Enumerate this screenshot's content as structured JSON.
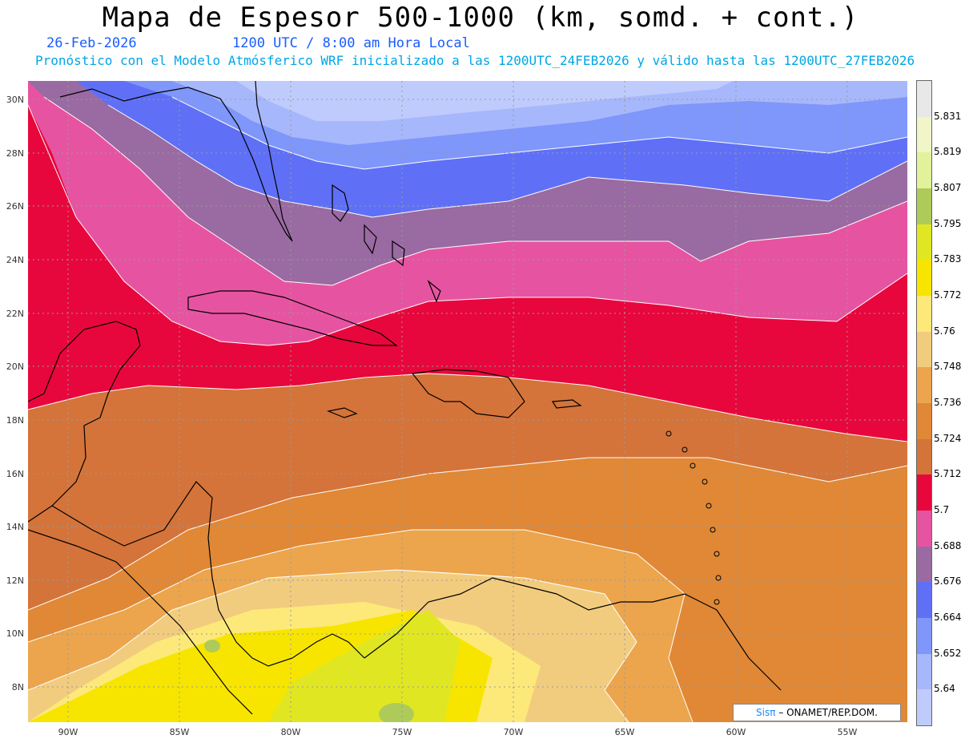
{
  "header": {
    "title": "Mapa de Espesor 500-1000 (km, somd. + cont.)",
    "date": "26-Feb-2026",
    "time": "1200 UTC / 8:00 am Hora Local",
    "forecast": "Pronóstico con el Modelo Atmósferico WRF inicializado a las 1200UTC_24FEB2026 y válido hasta las  1200UTC_27FEB2026"
  },
  "axes": {
    "lat_labels": [
      "30N",
      "28N",
      "26N",
      "24N",
      "22N",
      "20N",
      "18N",
      "16N",
      "14N",
      "12N",
      "10N",
      "8N"
    ],
    "lon_labels": [
      "90W",
      "85W",
      "80W",
      "75W",
      "70W",
      "65W",
      "60W",
      "55W"
    ]
  },
  "legend": {
    "labels": [
      "5.831",
      "5.819",
      "5.807",
      "5.795",
      "5.783",
      "5.772",
      "5.76",
      "5.748",
      "5.736",
      "5.724",
      "5.712",
      "5.7",
      "5.688",
      "5.676",
      "5.664",
      "5.652",
      "5.64"
    ],
    "colors": [
      "#e8e8e8",
      "#f2f5c7",
      "#e2f29a",
      "#aecb5a",
      "#e0e722",
      "#f7e500",
      "#fde97a",
      "#f2cc7e",
      "#eca54c",
      "#e08836",
      "#d4743a",
      "#e8073d",
      "#e654a1",
      "#9a6aa2",
      "#5f70f6",
      "#7f96fa",
      "#a7b7fb",
      "#c0cbfd"
    ]
  },
  "credit": {
    "brand": "Sisπ",
    "text": "– ONAMET/REP.DOM."
  },
  "colors": {
    "title": "#000000",
    "date": "#1a5cff",
    "forecast": "#00a6e6"
  }
}
